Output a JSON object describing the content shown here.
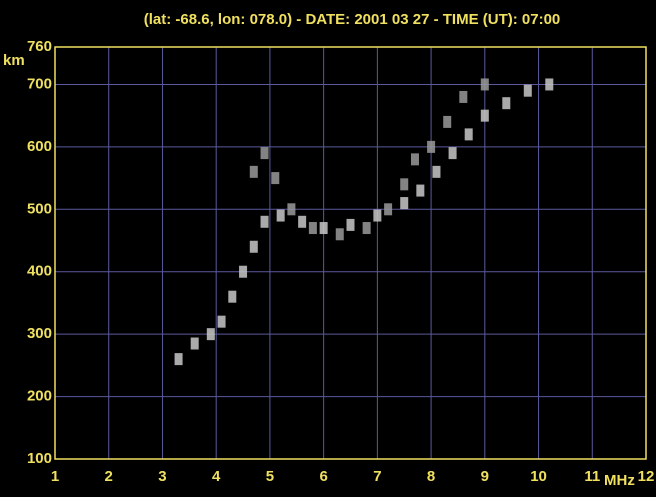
{
  "chart_data": {
    "type": "scatter",
    "title": "(lat: -68.6, lon: 078.0) - DATE: 2001 03 27 - TIME (UT): 07:00",
    "x_label": "MHz",
    "y_label": "km",
    "xlim": [
      1,
      12
    ],
    "ylim": [
      100,
      760
    ],
    "xticks": [
      1,
      2,
      3,
      4,
      5,
      6,
      7,
      8,
      9,
      10,
      11,
      12
    ],
    "yticks": [
      100,
      200,
      300,
      400,
      500,
      600,
      700,
      760
    ],
    "grid": true,
    "grid_color": "#5a5a9e",
    "axis_color": "#f0e060",
    "text_color": "#f0e060",
    "series": [
      {
        "color": "#c8c8c8",
        "x": [
          3.3,
          3.6,
          3.9,
          4.1,
          4.3,
          4.5,
          4.7,
          4.9,
          5.2,
          5.6,
          6.0,
          6.5,
          7.0,
          7.5,
          7.8,
          8.1,
          8.4,
          8.7,
          9.0,
          9.4,
          9.8,
          10.2
        ],
        "values": [
          260,
          285,
          300,
          320,
          360,
          400,
          440,
          480,
          490,
          480,
          470,
          475,
          490,
          510,
          530,
          560,
          590,
          620,
          650,
          670,
          690,
          700
        ]
      },
      {
        "color": "#9a9a9a",
        "x": [
          4.7,
          4.9,
          5.1,
          5.4,
          5.8,
          6.3,
          6.8,
          7.2,
          7.5,
          7.7,
          8.0,
          8.3,
          8.6,
          9.0
        ],
        "values": [
          560,
          590,
          550,
          500,
          470,
          460,
          470,
          500,
          540,
          580,
          600,
          640,
          680,
          700
        ]
      }
    ]
  }
}
